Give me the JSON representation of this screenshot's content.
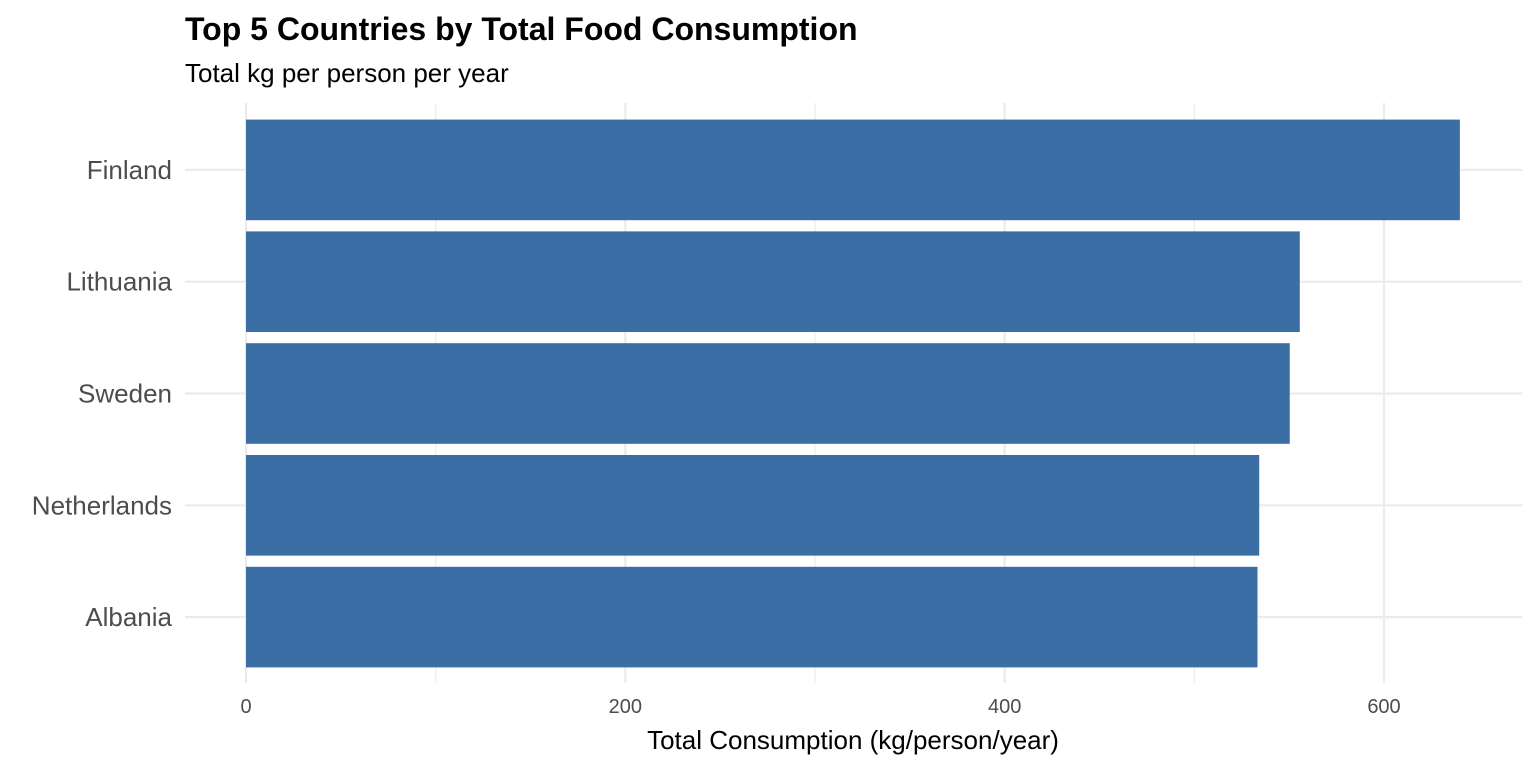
{
  "chart_data": {
    "type": "bar",
    "orientation": "horizontal",
    "title": "Top 5 Countries by Total Food Consumption",
    "subtitle": "Total kg per person per year",
    "xlabel": "Total Consumption (kg/person/year)",
    "ylabel": "",
    "categories": [
      "Finland",
      "Lithuania",
      "Sweden",
      "Netherlands",
      "Albania"
    ],
    "values": [
      640.0,
      555.6,
      550.3,
      534.2,
      533.3
    ],
    "xlim": [
      0,
      673
    ],
    "x_ticks": [
      0,
      200,
      400,
      600
    ],
    "x_tick_labels": [
      "0",
      "200",
      "400",
      "600"
    ],
    "x_minor_ticks": [
      100,
      300,
      500
    ],
    "grid": true,
    "legend": "none",
    "bar_color": "#3a6ea5",
    "grid_color": "#ebebeb"
  }
}
